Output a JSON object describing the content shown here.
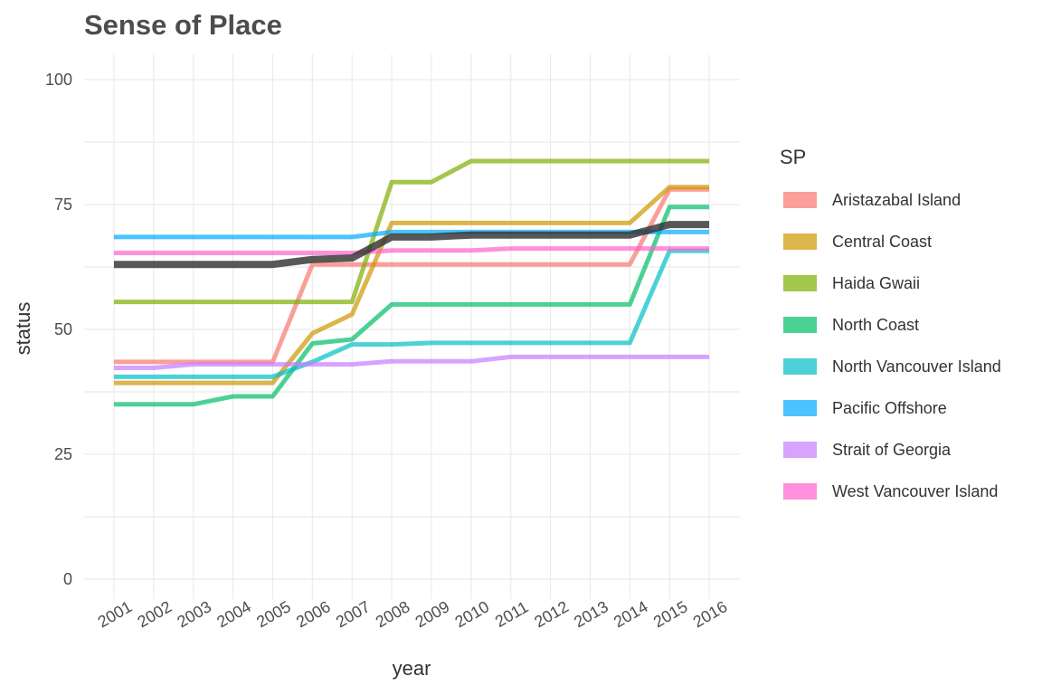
{
  "chart_data": {
    "type": "line",
    "title": "Sense of Place",
    "xlabel": "year",
    "ylabel": "status",
    "legend_title": "SP",
    "legend_position": "right",
    "ylim": [
      0,
      100
    ],
    "yticks": [
      0,
      25,
      50,
      75,
      100
    ],
    "x": [
      2001,
      2002,
      2003,
      2004,
      2005,
      2006,
      2007,
      2008,
      2009,
      2010,
      2011,
      2012,
      2013,
      2014,
      2015,
      2016
    ],
    "series": [
      {
        "name": "Aristazabal Island",
        "color": "#f8766d",
        "values": [
          43.5,
          43.5,
          43.5,
          43.5,
          43.5,
          63,
          63,
          63,
          63,
          63,
          63,
          63,
          63,
          63,
          78,
          78
        ]
      },
      {
        "name": "Central Coast",
        "color": "#cd9600",
        "values": [
          39.3,
          39.3,
          39.3,
          39.3,
          39.3,
          49.2,
          53,
          71.3,
          71.3,
          71.3,
          71.3,
          71.3,
          71.3,
          71.3,
          78.5,
          78.5
        ]
      },
      {
        "name": "Haida Gwaii",
        "color": "#7cae00",
        "values": [
          55.5,
          55.5,
          55.5,
          55.5,
          55.5,
          55.5,
          55.5,
          79.5,
          79.5,
          83.7,
          83.7,
          83.7,
          83.7,
          83.7,
          83.7,
          83.7
        ]
      },
      {
        "name": "North Coast",
        "color": "#00be67",
        "values": [
          35,
          35,
          35,
          36.6,
          36.6,
          47.2,
          48,
          55,
          55,
          55,
          55,
          55,
          55,
          55,
          74.5,
          74.5
        ]
      },
      {
        "name": "North Vancouver Island",
        "color": "#00bfc4",
        "values": [
          40.5,
          40.5,
          40.5,
          40.5,
          40.5,
          43.5,
          47,
          47,
          47.3,
          47.3,
          47.3,
          47.3,
          47.3,
          47.3,
          65.7,
          65.7
        ]
      },
      {
        "name": "Pacific Offshore",
        "color": "#00a9ff",
        "values": [
          68.5,
          68.5,
          68.5,
          68.5,
          68.5,
          68.5,
          68.5,
          69.5,
          69.5,
          69.5,
          69.5,
          69.5,
          69.5,
          69.5,
          69.5,
          69.5
        ]
      },
      {
        "name": "Strait of Georgia",
        "color": "#c77cff",
        "values": [
          42.3,
          42.3,
          43,
          43,
          43,
          43,
          43,
          43.6,
          43.6,
          43.6,
          44.5,
          44.5,
          44.5,
          44.5,
          44.5,
          44.5
        ]
      },
      {
        "name": "West Vancouver Island",
        "color": "#ff61cc",
        "values": [
          65.3,
          65.3,
          65.3,
          65.3,
          65.3,
          65.3,
          65.3,
          65.8,
          65.8,
          65.8,
          66.2,
          66.2,
          66.2,
          66.2,
          66.2,
          66.2
        ]
      }
    ],
    "overall_series": {
      "color": "#333333",
      "values": [
        63,
        63,
        63,
        63,
        63,
        64,
        64.3,
        68.5,
        68.5,
        68.9,
        68.9,
        68.9,
        68.9,
        68.9,
        71,
        71
      ]
    }
  }
}
